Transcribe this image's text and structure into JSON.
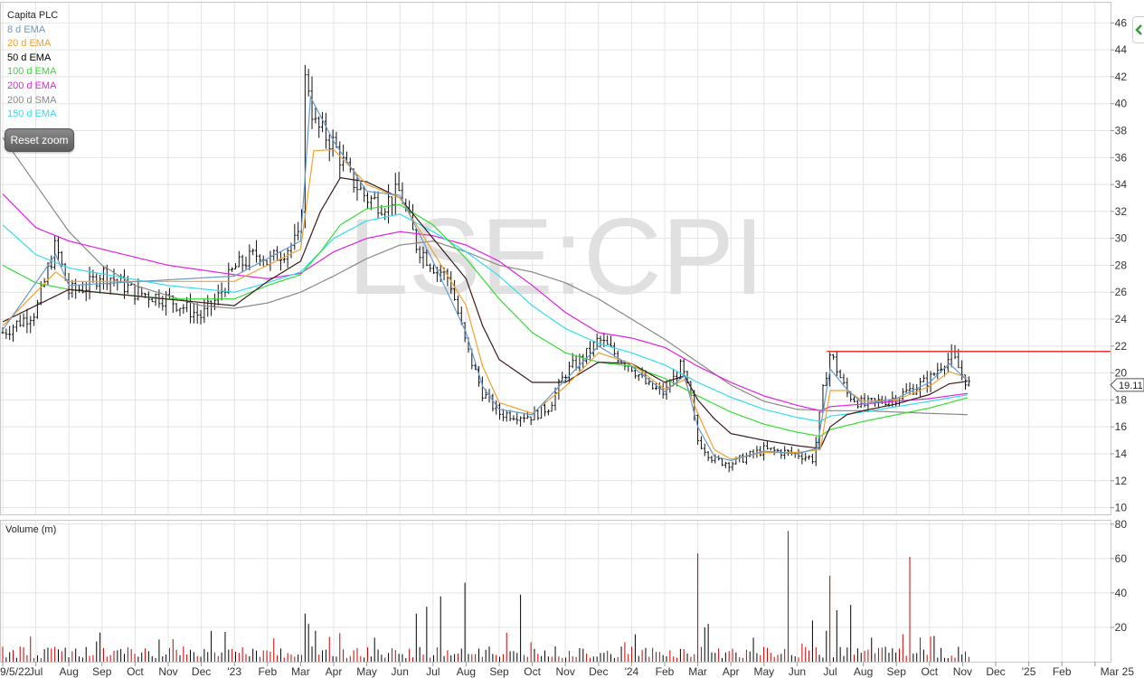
{
  "legend": {
    "title": "Capita PLC",
    "items": [
      {
        "label": "8 d EMA",
        "color": "#6699cc"
      },
      {
        "label": "20 d EMA",
        "color": "#f0a030"
      },
      {
        "label": "50 d EMA",
        "color": "#000000"
      },
      {
        "label": "100 d EMA",
        "color": "#33dd33"
      },
      {
        "label": "200 d EMA",
        "color": "#e020e0"
      },
      {
        "label": "200 d SMA",
        "color": "#888888"
      },
      {
        "label": "150 d EMA",
        "color": "#33ddee"
      }
    ]
  },
  "reset_zoom_label": "Reset zoom",
  "side_tab_icon": "chevron-left-icon",
  "chart_data": {
    "type": "candlestick",
    "watermark": "LSE:CPI",
    "last_price_label": "19.11",
    "resistance_level": 21.6,
    "resistance_color": "#ee3333",
    "price_axis": {
      "ylim": [
        9.5,
        47.5
      ],
      "ticks": [
        10,
        12,
        14,
        16,
        18,
        20,
        22,
        24,
        26,
        28,
        30,
        32,
        34,
        36,
        38,
        40,
        42,
        44,
        46
      ],
      "grid": true,
      "position": "right"
    },
    "volume_axis": {
      "label": "Volume (m)",
      "ylim": [
        0,
        82
      ],
      "ticks": [
        20,
        40,
        60,
        80
      ],
      "up_color": "#000000",
      "down_color": "#cc0000"
    },
    "x_axis": {
      "months": [
        "9/5/22",
        "Jul",
        "Aug",
        "Sep",
        "Oct",
        "Nov",
        "Dec",
        "'23",
        "Feb",
        "Mar",
        "Apr",
        "May",
        "Jun",
        "Jul",
        "Aug",
        "Sep",
        "Oct",
        "Nov",
        "Dec",
        "'24",
        "Feb",
        "Mar",
        "Apr",
        "May",
        "Jun",
        "Jul",
        "Aug",
        "Sep",
        "Oct",
        "Nov",
        "Dec",
        "'25",
        "Feb",
        "Mar 25"
      ],
      "first_label": "9/5/22",
      "last_label": "Mar 25"
    },
    "price_keypoints": [
      [
        0,
        23.0
      ],
      [
        1,
        24.6
      ],
      [
        1.6,
        29.5
      ],
      [
        2,
        26.0
      ],
      [
        2.6,
        26.5
      ],
      [
        3,
        27.5
      ],
      [
        4,
        26.0
      ],
      [
        5,
        25.5
      ],
      [
        6,
        24.2
      ],
      [
        6.5,
        25.6
      ],
      [
        7,
        27.8
      ],
      [
        7.8,
        29.0
      ],
      [
        8,
        28.2
      ],
      [
        9,
        30.0
      ],
      [
        9.15,
        43.0
      ],
      [
        9.4,
        38.5
      ],
      [
        10,
        37.0
      ],
      [
        10.5,
        34.5
      ],
      [
        11,
        33.0
      ],
      [
        11.5,
        32.5
      ],
      [
        12,
        33.5
      ],
      [
        12.5,
        29.5
      ],
      [
        13,
        28.0
      ],
      [
        13.5,
        27.0
      ],
      [
        14,
        22.0
      ],
      [
        14.5,
        18.5
      ],
      [
        15,
        17.0
      ],
      [
        16,
        16.8
      ],
      [
        16.5,
        17.5
      ],
      [
        17,
        20.0
      ],
      [
        17.7,
        21.5
      ],
      [
        18,
        22.5
      ],
      [
        18.7,
        21.0
      ],
      [
        19,
        20.5
      ],
      [
        19.5,
        19.0
      ],
      [
        20,
        18.5
      ],
      [
        20.5,
        20.5
      ],
      [
        20.8,
        18.0
      ],
      [
        21,
        15.0
      ],
      [
        21.5,
        13.5
      ],
      [
        22,
        13.3
      ],
      [
        23,
        14.3
      ],
      [
        24,
        14.0
      ],
      [
        24.5,
        13.6
      ],
      [
        24.8,
        19.0
      ],
      [
        25,
        21.5
      ],
      [
        25.5,
        18.5
      ],
      [
        26,
        17.6
      ],
      [
        27,
        18.2
      ],
      [
        28,
        19.5
      ],
      [
        28.4,
        20.8
      ],
      [
        28.7,
        21.2
      ],
      [
        29,
        19.8
      ],
      [
        29.2,
        19.1
      ]
    ],
    "ema_8_keypoints": [
      [
        0,
        23.2
      ],
      [
        1.6,
        28.8
      ],
      [
        2,
        26.5
      ],
      [
        7,
        27.2
      ],
      [
        9,
        29.8
      ],
      [
        9.3,
        40.5
      ],
      [
        10,
        37.2
      ],
      [
        11,
        33.5
      ],
      [
        12,
        33.2
      ],
      [
        13,
        28.3
      ],
      [
        14,
        23.0
      ],
      [
        14.5,
        19.0
      ],
      [
        15,
        17.3
      ],
      [
        16,
        16.9
      ],
      [
        17,
        19.5
      ],
      [
        18,
        22.0
      ],
      [
        19,
        20.5
      ],
      [
        20,
        18.6
      ],
      [
        20.6,
        19.8
      ],
      [
        21,
        16.0
      ],
      [
        21.5,
        13.8
      ],
      [
        22,
        13.5
      ],
      [
        23,
        14.2
      ],
      [
        24,
        14.0
      ],
      [
        24.6,
        14.4
      ],
      [
        25,
        20.3
      ],
      [
        25.5,
        18.8
      ],
      [
        26,
        17.7
      ],
      [
        27,
        18.1
      ],
      [
        28,
        19.3
      ],
      [
        28.6,
        20.7
      ],
      [
        29.2,
        19.3
      ]
    ],
    "ema_20_keypoints": [
      [
        0,
        23.5
      ],
      [
        1.6,
        27.5
      ],
      [
        2,
        26.8
      ],
      [
        7,
        26.8
      ],
      [
        9,
        29.2
      ],
      [
        9.4,
        36.5
      ],
      [
        10,
        36.6
      ],
      [
        11,
        34.0
      ],
      [
        12,
        33.0
      ],
      [
        13,
        29.0
      ],
      [
        14,
        25.0
      ],
      [
        14.5,
        20.5
      ],
      [
        15,
        17.8
      ],
      [
        16,
        17.0
      ],
      [
        17,
        19.0
      ],
      [
        18,
        21.5
      ],
      [
        19,
        20.7
      ],
      [
        20,
        18.8
      ],
      [
        20.6,
        19.5
      ],
      [
        21,
        17.0
      ],
      [
        21.5,
        14.3
      ],
      [
        22,
        13.6
      ],
      [
        23,
        14.1
      ],
      [
        24,
        14.1
      ],
      [
        24.7,
        14.3
      ],
      [
        25,
        18.7
      ],
      [
        25.5,
        18.7
      ],
      [
        26,
        17.9
      ],
      [
        27,
        18.0
      ],
      [
        28,
        19.0
      ],
      [
        28.6,
        20.1
      ],
      [
        29.2,
        19.6
      ]
    ],
    "ema_50_keypoints": [
      [
        0,
        23.8
      ],
      [
        2,
        26.2
      ],
      [
        7,
        25.0
      ],
      [
        8,
        26.8
      ],
      [
        9,
        28.3
      ],
      [
        9.6,
        32.0
      ],
      [
        10.2,
        34.5
      ],
      [
        11,
        34.2
      ],
      [
        12,
        33.0
      ],
      [
        13,
        30.0
      ],
      [
        14,
        27.0
      ],
      [
        14.5,
        23.5
      ],
      [
        15,
        21.0
      ],
      [
        16,
        19.3
      ],
      [
        17,
        19.3
      ],
      [
        18,
        20.8
      ],
      [
        19,
        20.7
      ],
      [
        20,
        19.3
      ],
      [
        20.6,
        19.8
      ],
      [
        21,
        18.0
      ],
      [
        21.5,
        16.6
      ],
      [
        22,
        15.5
      ],
      [
        23,
        15.0
      ],
      [
        24,
        14.6
      ],
      [
        24.7,
        14.4
      ],
      [
        25,
        16.0
      ],
      [
        25.5,
        16.9
      ],
      [
        26,
        17.2
      ],
      [
        27,
        17.7
      ],
      [
        28,
        18.4
      ],
      [
        28.6,
        19.2
      ],
      [
        29.2,
        19.4
      ]
    ],
    "ema_100_keypoints": [
      [
        0,
        28.0
      ],
      [
        1,
        26.7
      ],
      [
        2,
        26.2
      ],
      [
        5,
        25.5
      ],
      [
        7,
        25.5
      ],
      [
        8,
        26.5
      ],
      [
        9,
        27.3
      ],
      [
        9.6,
        29.0
      ],
      [
        10.2,
        31.0
      ],
      [
        11,
        32.2
      ],
      [
        12,
        32.5
      ],
      [
        13,
        31.0
      ],
      [
        14,
        28.5
      ],
      [
        15,
        25.5
      ],
      [
        16,
        23.0
      ],
      [
        17,
        21.5
      ],
      [
        18,
        20.8
      ],
      [
        19,
        20.5
      ],
      [
        20,
        19.6
      ],
      [
        21,
        18.3
      ],
      [
        22,
        17.1
      ],
      [
        23,
        16.2
      ],
      [
        24,
        15.6
      ],
      [
        24.7,
        15.3
      ],
      [
        25,
        15.8
      ],
      [
        26,
        16.4
      ],
      [
        27,
        16.9
      ],
      [
        28,
        17.4
      ],
      [
        29.2,
        18.2
      ]
    ],
    "ema_150_keypoints": [
      [
        0,
        31.0
      ],
      [
        1,
        28.8
      ],
      [
        2,
        27.8
      ],
      [
        5,
        26.5
      ],
      [
        7,
        26.0
      ],
      [
        8,
        26.7
      ],
      [
        9,
        27.5
      ],
      [
        10,
        30.0
      ],
      [
        11,
        31.3
      ],
      [
        12,
        31.8
      ],
      [
        13,
        30.5
      ],
      [
        14,
        29.0
      ],
      [
        15,
        27.2
      ],
      [
        16,
        25.0
      ],
      [
        17,
        23.3
      ],
      [
        18,
        22.2
      ],
      [
        19,
        21.5
      ],
      [
        20,
        20.6
      ],
      [
        21,
        19.3
      ],
      [
        22,
        18.2
      ],
      [
        23,
        17.3
      ],
      [
        24,
        16.7
      ],
      [
        24.7,
        16.4
      ],
      [
        25,
        16.8
      ],
      [
        26,
        17.1
      ],
      [
        27,
        17.5
      ],
      [
        28,
        17.9
      ],
      [
        29.2,
        18.4
      ]
    ],
    "ema_200_keypoints": [
      [
        0,
        33.3
      ],
      [
        1,
        30.8
      ],
      [
        2,
        29.8
      ],
      [
        5,
        28.0
      ],
      [
        7,
        27.3
      ],
      [
        8,
        27.0
      ],
      [
        9,
        27.4
      ],
      [
        10,
        29.0
      ],
      [
        11,
        30.0
      ],
      [
        12,
        30.5
      ],
      [
        13,
        30.2
      ],
      [
        14,
        29.5
      ],
      [
        15,
        28.3
      ],
      [
        16,
        26.5
      ],
      [
        17,
        24.5
      ],
      [
        18,
        23.0
      ],
      [
        19,
        22.6
      ],
      [
        20,
        21.9
      ],
      [
        21,
        20.5
      ],
      [
        22,
        19.3
      ],
      [
        23,
        18.3
      ],
      [
        24,
        17.6
      ],
      [
        24.7,
        17.2
      ],
      [
        25,
        17.5
      ],
      [
        26,
        17.7
      ],
      [
        27,
        17.9
      ],
      [
        28,
        18.1
      ],
      [
        29.2,
        18.5
      ]
    ],
    "sma_200_keypoints": [
      [
        0,
        37.5
      ],
      [
        1,
        34.0
      ],
      [
        2,
        30.5
      ],
      [
        3,
        28.0
      ],
      [
        4,
        26.5
      ],
      [
        6,
        25.0
      ],
      [
        7,
        24.8
      ],
      [
        8,
        25.2
      ],
      [
        9,
        26.0
      ],
      [
        10,
        27.2
      ],
      [
        11,
        28.5
      ],
      [
        12,
        29.5
      ],
      [
        13,
        29.8
      ],
      [
        14,
        29.0
      ],
      [
        15,
        28.0
      ],
      [
        16,
        27.5
      ],
      [
        17,
        26.7
      ],
      [
        18,
        25.5
      ],
      [
        19,
        24.0
      ],
      [
        20,
        22.5
      ],
      [
        21,
        20.8
      ],
      [
        22,
        19.1
      ],
      [
        23,
        17.9
      ],
      [
        24,
        17.3
      ],
      [
        25,
        17.2
      ],
      [
        26,
        17.2
      ],
      [
        27,
        17.1
      ],
      [
        28,
        17.0
      ],
      [
        29.2,
        16.9
      ]
    ],
    "volume_spikes": [
      [
        9.1,
        28
      ],
      [
        9.2,
        22
      ],
      [
        9.5,
        18
      ],
      [
        12.5,
        28
      ],
      [
        12.8,
        32
      ],
      [
        13.2,
        38
      ],
      [
        14,
        46
      ],
      [
        15.6,
        39
      ],
      [
        21,
        63
      ],
      [
        21.2,
        20
      ],
      [
        21.3,
        22
      ],
      [
        22.7,
        14
      ],
      [
        23.7,
        76
      ],
      [
        24.5,
        24
      ],
      [
        25,
        50
      ],
      [
        25.2,
        30
      ],
      [
        25.6,
        33
      ],
      [
        26.3,
        14
      ],
      [
        27.4,
        61
      ],
      [
        27.2,
        16
      ],
      [
        28.1,
        15
      ]
    ]
  }
}
